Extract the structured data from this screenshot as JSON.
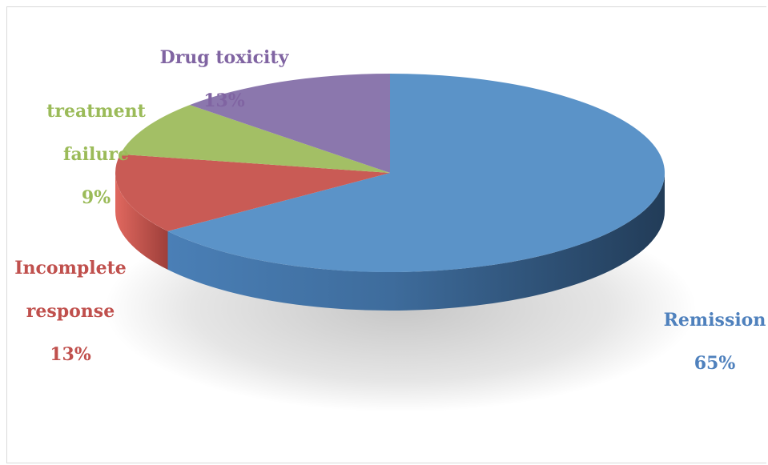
{
  "chart_data": {
    "type": "pie",
    "style": "3d",
    "slices": [
      {
        "label": "Remission",
        "value": 65,
        "text": "65%",
        "color": "#5b93c8"
      },
      {
        "label": "Incomplete response",
        "value": 13,
        "text": "13%",
        "color": "#c95b55"
      },
      {
        "label": "treatment failure",
        "value": 9,
        "text": "9%",
        "color": "#a3bf65"
      },
      {
        "label": "Drug toxicity",
        "value": 13,
        "text": "13%",
        "color": "#8b77ad"
      }
    ]
  },
  "labels": {
    "drug_toxicity": {
      "line1": "Drug toxicity",
      "value": "13%"
    },
    "treatment_failure": {
      "line1": "treatment",
      "line2": "failure",
      "value": "9%"
    },
    "incomplete_response": {
      "line1": "Incomplete",
      "line2": "response",
      "value": "13%"
    },
    "remission": {
      "line1": "Remission",
      "value": "65%"
    }
  },
  "label_colors": {
    "drug_toxicity": "#8064a2",
    "treatment_failure": "#9bbb59",
    "incomplete_response": "#c0504d",
    "remission": "#4f81bd"
  }
}
